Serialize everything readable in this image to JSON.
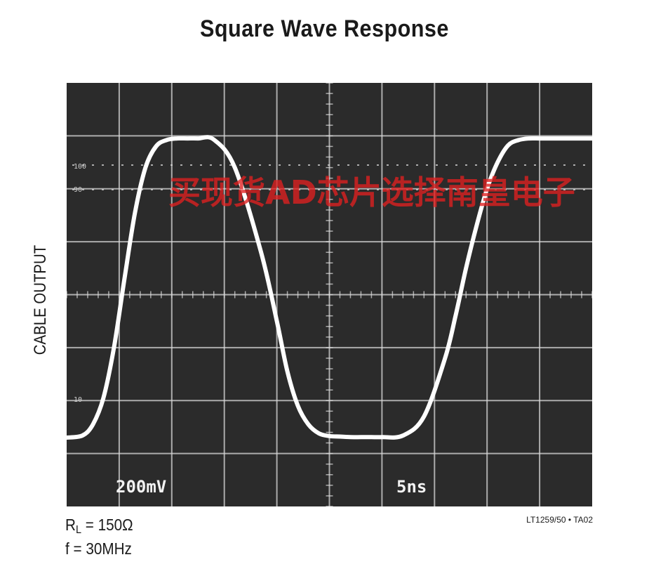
{
  "chart_data": {
    "type": "line",
    "title": "Square Wave Response",
    "ylabel": "CABLE OUTPUT",
    "grid": true,
    "graticule": {
      "major_x": 10,
      "major_y": 8
    },
    "scale_labels": {
      "vertical": "200mV",
      "horizontal": "5ns"
    },
    "reticle_marks": [
      "100",
      "90",
      "10"
    ],
    "series": [
      {
        "color": "#ffffff",
        "x": [
          0.0,
          0.3,
          0.5,
          0.7,
          0.9,
          1.1,
          1.3,
          1.5,
          1.7,
          1.9,
          2.1,
          2.3,
          2.5,
          2.8,
          3.2,
          3.7,
          4.0,
          4.2,
          4.4,
          4.6,
          4.8,
          5.0,
          5.2,
          5.4,
          5.6,
          5.8,
          6.0,
          6.4,
          6.8,
          7.2,
          7.4,
          7.6,
          7.8,
          8.0,
          8.2,
          8.4,
          8.6,
          8.8,
          9.0,
          9.2,
          9.4,
          10.0
        ],
        "y": [
          1.3,
          1.34,
          1.55,
          2.05,
          3.0,
          4.3,
          5.55,
          6.4,
          6.8,
          6.92,
          6.95,
          6.95,
          6.95,
          6.93,
          6.4,
          4.8,
          3.5,
          2.55,
          1.9,
          1.55,
          1.38,
          1.33,
          1.32,
          1.31,
          1.31,
          1.31,
          1.31,
          1.34,
          1.7,
          2.8,
          3.6,
          4.5,
          5.3,
          6.0,
          6.5,
          6.82,
          6.92,
          6.95,
          6.95,
          6.95,
          6.95,
          6.95
        ]
      }
    ]
  },
  "conditions": {
    "rl_symbol": "R",
    "rl_sub": "L",
    "rl_value": " = 150Ω",
    "freq": "f = 30MHz"
  },
  "figure_id": "LT1259/50 • TA02",
  "watermark": "买现货AD芯片选择南皇电子",
  "colors": {
    "screen": "#2b2b2b",
    "grid": "#d8d8d8",
    "trace": "#ffffff",
    "watermark": "#e02020"
  }
}
